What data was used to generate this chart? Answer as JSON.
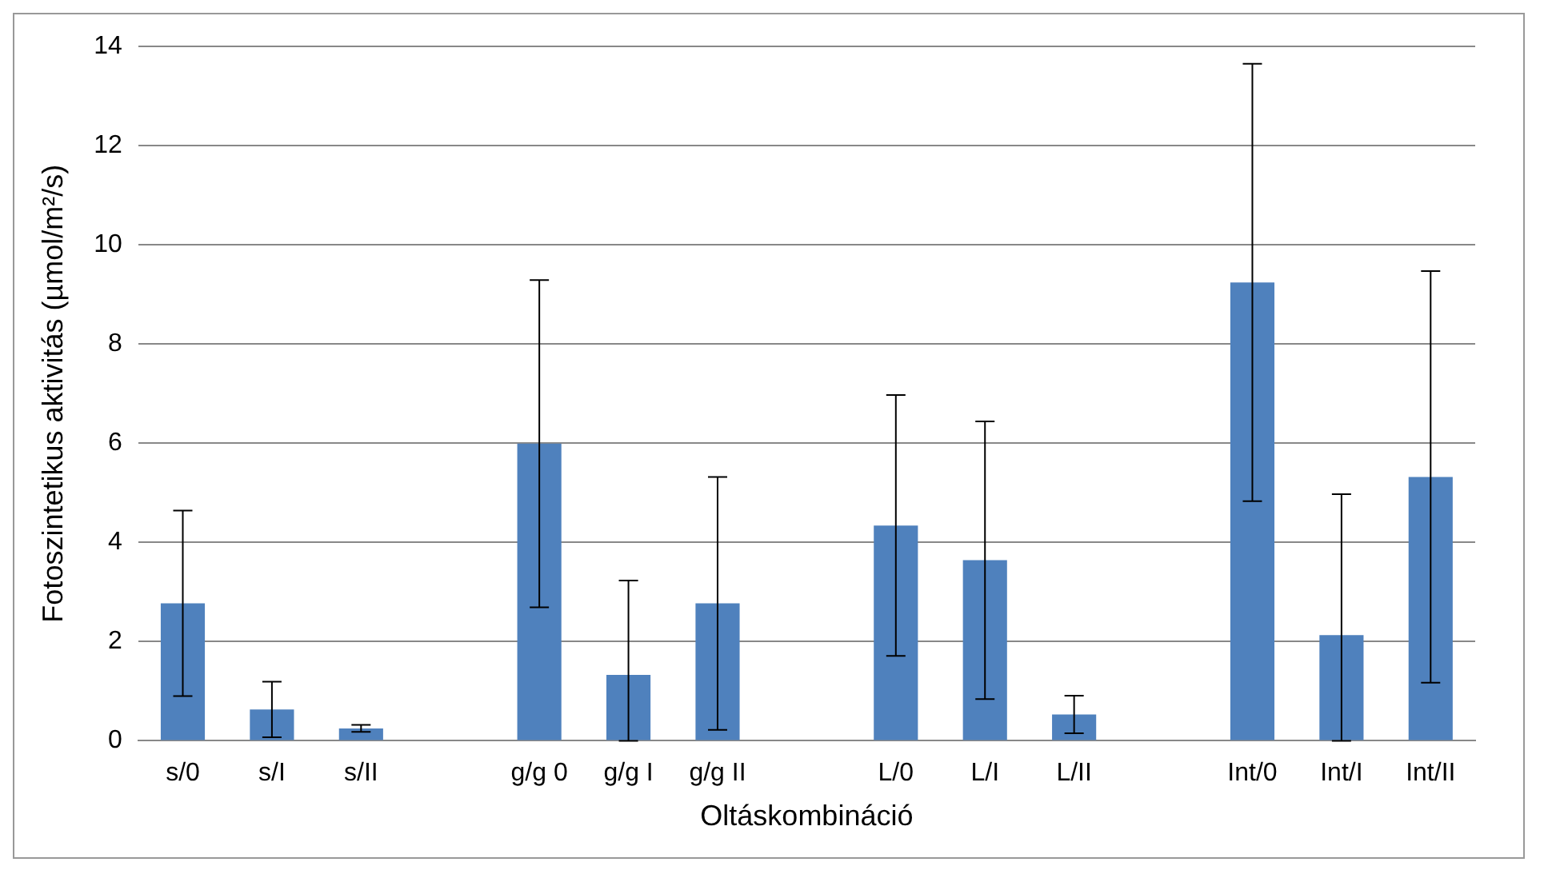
{
  "chart_data": {
    "type": "bar",
    "xlabel": "Oltáskombináció",
    "ylabel": "Fotoszintetikus aktivitás (µmol/m²/s)",
    "categories": [
      "s/0",
      "s/I",
      "s/II",
      null,
      "g/g 0",
      "g/g I",
      "g/g II",
      null,
      "L/0",
      "L/I",
      "L/II",
      null,
      "Int/0",
      "Int/I",
      "Int/II"
    ],
    "values": [
      2.77,
      0.63,
      0.25,
      null,
      5.99,
      1.33,
      2.77,
      null,
      4.34,
      3.64,
      0.53,
      null,
      9.24,
      2.13,
      5.32
    ],
    "errors": [
      1.87,
      0.56,
      0.07,
      null,
      3.3,
      [
        0,
        3.23
      ],
      2.55,
      null,
      2.63,
      2.8,
      0.38,
      null,
      4.41,
      [
        0,
        4.97
      ],
      4.15
    ],
    "color": "#4f81bd",
    "ylim": [
      0,
      14
    ],
    "yticks": [
      0,
      2,
      4,
      6,
      8,
      10,
      12,
      14
    ],
    "grid": "y",
    "legend": false
  }
}
